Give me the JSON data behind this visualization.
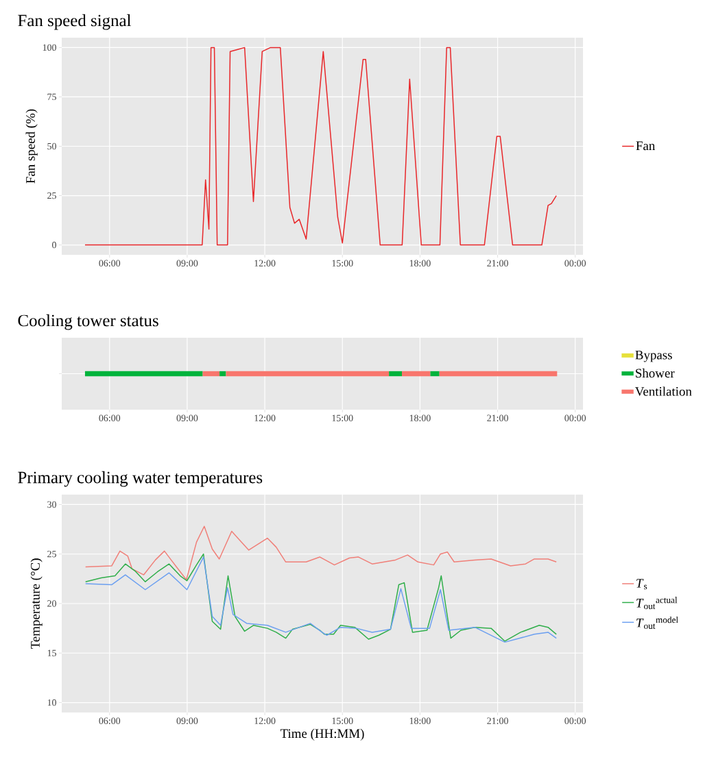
{
  "chart_data": [
    {
      "type": "line",
      "title": "Fan speed signal",
      "ylabel": "Fan speed (%)",
      "x": [
        5.05,
        9.58,
        9.71,
        9.84,
        9.92,
        10.05,
        10.16,
        10.56,
        10.66,
        10.95,
        11.22,
        11.56,
        11.9,
        12.22,
        12.6,
        12.97,
        13.15,
        13.33,
        13.6,
        14.26,
        14.82,
        15.0,
        15.8,
        15.9,
        16.46,
        17.31,
        17.6,
        18.05,
        18.77,
        19.03,
        19.17,
        19.56,
        20.49,
        20.97,
        21.1,
        21.58,
        22.71,
        22.95,
        23.08,
        23.27
      ],
      "series": [
        {
          "name": "Fan",
          "color": "#e8272a",
          "values": [
            0,
            0,
            33,
            8,
            100,
            100,
            0,
            0,
            98,
            99,
            100,
            22,
            98,
            100,
            100,
            19,
            11,
            13,
            3,
            98,
            14,
            1,
            94,
            94,
            0,
            0,
            84,
            0,
            0,
            100,
            100,
            0,
            0,
            55,
            55,
            0,
            0,
            20,
            21,
            25
          ]
        }
      ],
      "xlim": [
        4.15,
        24.3
      ],
      "ylim": [
        -5,
        105
      ],
      "xticks": [
        {
          "value": 6,
          "label": "06:00"
        },
        {
          "value": 9,
          "label": "09:00"
        },
        {
          "value": 12,
          "label": "12:00"
        },
        {
          "value": 15,
          "label": "15:00"
        },
        {
          "value": 18,
          "label": "18:00"
        },
        {
          "value": 21,
          "label": "21:00"
        },
        {
          "value": 24,
          "label": "00:00"
        }
      ],
      "yticks": [
        0,
        25,
        50,
        75,
        100
      ],
      "grid": true,
      "legend": "right"
    },
    {
      "type": "bar",
      "orientation": "horizontal",
      "title": "Cooling tower status",
      "categories": [
        null
      ],
      "series": [
        {
          "name": "Bypass",
          "color": "#e6e03a",
          "base": [
            null
          ],
          "values": [
            null
          ]
        },
        {
          "name": "Shower",
          "color": "#00b33c",
          "base": [
            5.05
          ],
          "values": [
            4.55
          ]
        },
        {
          "name": "Ventilation",
          "color": "#f8766d",
          "base": [
            9.6
          ],
          "values": [
            0.65
          ]
        },
        {
          "color": "#00b33c",
          "base": [
            10.25
          ],
          "values": [
            0.25
          ]
        },
        {
          "color": "#f8766d",
          "base": [
            10.5
          ],
          "values": [
            6.3
          ]
        },
        {
          "color": "#00b33c",
          "base": [
            16.8
          ],
          "values": [
            0.5
          ]
        },
        {
          "color": "#f8766d",
          "base": [
            17.3
          ],
          "values": [
            1.1
          ]
        },
        {
          "color": "#00b33c",
          "base": [
            18.4
          ],
          "values": [
            0.35
          ]
        },
        {
          "color": "#f8766d",
          "base": [
            18.75
          ],
          "values": [
            4.55
          ]
        }
      ],
      "xlim": [
        4.15,
        24.3
      ],
      "xticks": [
        {
          "value": 6,
          "label": "06:00"
        },
        {
          "value": 9,
          "label": "09:00"
        },
        {
          "value": 12,
          "label": "12:00"
        },
        {
          "value": 15,
          "label": "15:00"
        },
        {
          "value": 18,
          "label": "18:00"
        },
        {
          "value": 21,
          "label": "21:00"
        },
        {
          "value": 24,
          "label": "00:00"
        }
      ],
      "grid": true,
      "legend": "right"
    },
    {
      "type": "line",
      "title": "Primary cooling water temperatures",
      "xlabel": "Time (HH:MM)",
      "ylabel": "Temperature (°C)",
      "series": [
        {
          "name": "*T*$_{s}$",
          "color": "#f07f78",
          "x": [
            5.07,
            6.08,
            6.4,
            6.7,
            6.87,
            7.32,
            7.77,
            8.12,
            8.38,
            8.97,
            9.36,
            9.66,
            9.97,
            10.24,
            10.72,
            11.03,
            11.38,
            12.1,
            12.44,
            12.81,
            13.6,
            14.13,
            14.69,
            15.27,
            15.62,
            16.15,
            17.05,
            17.52,
            17.92,
            18.53,
            18.79,
            19.06,
            19.32,
            20.12,
            20.75,
            21.5,
            22.08,
            22.42,
            22.95,
            23.27
          ],
          "values": [
            23.7,
            23.8,
            25.3,
            24.8,
            23.5,
            22.9,
            24.4,
            25.3,
            24.4,
            22.4,
            26.2,
            27.8,
            25.5,
            24.5,
            27.3,
            26.4,
            25.4,
            26.6,
            25.7,
            24.2,
            24.2,
            24.7,
            23.9,
            24.6,
            24.7,
            24.0,
            24.4,
            24.9,
            24.2,
            23.9,
            25.0,
            25.2,
            24.2,
            24.4,
            24.5,
            23.8,
            24.0,
            24.5,
            24.5,
            24.2
          ]
        },
        {
          "name": "*T*$_{out}$$^{actual}$",
          "color": "#2fae4a",
          "x": [
            5.07,
            5.68,
            6.21,
            6.61,
            6.98,
            7.38,
            7.85,
            8.3,
            8.73,
            8.99,
            9.36,
            9.63,
            9.97,
            10.29,
            10.58,
            10.85,
            11.22,
            11.56,
            12.1,
            12.44,
            12.81,
            13.07,
            13.76,
            14.13,
            14.3,
            14.66,
            14.93,
            15.48,
            16.01,
            16.41,
            16.86,
            17.18,
            17.39,
            17.71,
            18.27,
            18.72,
            18.82,
            18.98,
            19.19,
            19.58,
            20.12,
            20.75,
            21.28,
            21.89,
            22.61,
            22.95,
            23.27
          ],
          "values": [
            22.2,
            22.6,
            22.8,
            24.0,
            23.3,
            22.2,
            23.2,
            24.0,
            22.8,
            22.3,
            23.9,
            25.0,
            18.2,
            17.4,
            22.8,
            18.7,
            17.2,
            17.8,
            17.5,
            17.1,
            16.5,
            17.4,
            17.9,
            17.3,
            16.9,
            16.9,
            17.8,
            17.6,
            16.4,
            16.8,
            17.4,
            21.9,
            22.1,
            17.1,
            17.3,
            21.6,
            22.8,
            20.0,
            16.5,
            17.3,
            17.6,
            17.5,
            16.2,
            17.1,
            17.8,
            17.6,
            16.9
          ]
        },
        {
          "name": "*T*$_{out}$$^{model}$",
          "color": "#6b9ff0",
          "x": [
            5.07,
            6.08,
            6.61,
            7.38,
            8.3,
            8.99,
            9.63,
            9.97,
            10.29,
            10.56,
            10.77,
            11.3,
            12.1,
            12.81,
            13.76,
            14.21,
            14.4,
            14.93,
            15.54,
            16.15,
            16.86,
            17.26,
            17.66,
            18.37,
            18.79,
            19.11,
            20.12,
            21.28,
            22.42,
            22.95,
            23.27
          ],
          "values": [
            22.0,
            21.9,
            22.9,
            21.4,
            23.1,
            21.4,
            24.7,
            18.7,
            17.8,
            21.6,
            18.9,
            18.0,
            17.8,
            17.1,
            18.0,
            17.1,
            16.8,
            17.6,
            17.5,
            17.1,
            17.4,
            21.5,
            17.5,
            17.5,
            21.4,
            17.3,
            17.6,
            16.1,
            16.9,
            17.1,
            16.5
          ]
        }
      ],
      "xlim": [
        4.15,
        24.3
      ],
      "ylim": [
        9,
        31
      ],
      "xticks": [
        {
          "value": 6,
          "label": "06:00"
        },
        {
          "value": 9,
          "label": "09:00"
        },
        {
          "value": 12,
          "label": "12:00"
        },
        {
          "value": 15,
          "label": "15:00"
        },
        {
          "value": 18,
          "label": "18:00"
        },
        {
          "value": 21,
          "label": "21:00"
        },
        {
          "value": 24,
          "label": "00:00"
        }
      ],
      "yticks": [
        10,
        15,
        20,
        25,
        30
      ],
      "grid": true,
      "legend": "right"
    }
  ]
}
